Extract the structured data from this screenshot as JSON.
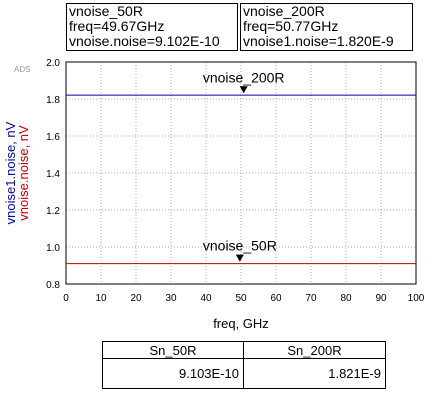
{
  "markers": [
    {
      "name": "vnoise_50R",
      "freq_line": "freq=49.67GHz",
      "value_line": "vnoise.noise=9.102E-10"
    },
    {
      "name": "vnoise_200R",
      "freq_line": "freq=50.77GHz",
      "value_line": "vnoise1.noise=1.820E-9"
    }
  ],
  "chart_data": {
    "type": "line",
    "watermark": "ADS",
    "xlabel": "freq, GHz",
    "ylabel_series": [
      "vnoise1.noise, nV",
      "vnoise.noise, nV"
    ],
    "xlim": [
      0,
      100
    ],
    "ylim": [
      0.8,
      2.0
    ],
    "xticks": [
      "0",
      "10",
      "20",
      "30",
      "40",
      "50",
      "60",
      "70",
      "80",
      "90",
      "100"
    ],
    "yticks": [
      "0.8",
      "1.0",
      "1.2",
      "1.4",
      "1.6",
      "1.8",
      "2.0"
    ],
    "grid": true,
    "series": [
      {
        "name": "vnoise1.noise, nV",
        "color": "#0000aa",
        "x": [
          0,
          100
        ],
        "y": [
          1.821,
          1.821
        ]
      },
      {
        "name": "vnoise.noise, nV",
        "color": "#c00000",
        "x": [
          0,
          100
        ],
        "y": [
          0.9103,
          0.9103
        ]
      }
    ],
    "marker_points": [
      {
        "label": "vnoise_200R",
        "x": 50.77,
        "y": 1.82
      },
      {
        "label": "vnoise_50R",
        "x": 49.67,
        "y": 0.9102
      }
    ]
  },
  "table": {
    "headers": [
      "Sn_50R",
      "Sn_200R"
    ],
    "values": [
      "9.103E-10",
      "1.821E-9"
    ]
  }
}
